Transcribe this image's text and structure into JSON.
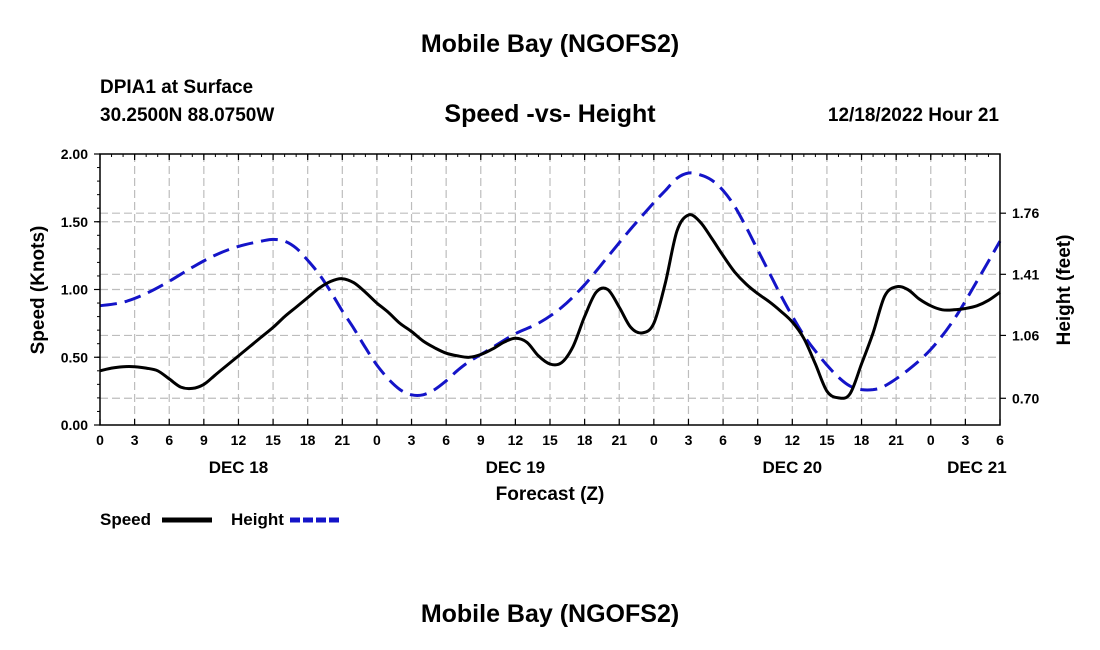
{
  "header": {
    "title": "Mobile Bay (NGOFS2)",
    "station": "DPIA1 at Surface",
    "coords": "30.2500N  88.0750W",
    "chart_title": "Speed -vs- Height",
    "datetime": "12/18/2022 Hour 21"
  },
  "footer": {
    "title": "Mobile Bay (NGOFS2)"
  },
  "legend": {
    "speed_label": "Speed",
    "height_label": "Height"
  },
  "colors": {
    "speed": "#000000",
    "height": "#1414c8",
    "grid": "#bdbdbd"
  },
  "chart_data": {
    "type": "line",
    "title": "Speed -vs- Height",
    "xlabel": "Forecast (Z)",
    "ylabel": "Speed (Knots)",
    "y2label": "Height (feet)",
    "x_range": [
      0,
      78
    ],
    "ylim": [
      0,
      2.0
    ],
    "y2lim": [
      0.547,
      2.099
    ],
    "x_ticks": [
      0,
      3,
      6,
      9,
      12,
      15,
      18,
      21,
      24,
      27,
      30,
      33,
      36,
      39,
      42,
      45,
      48,
      51,
      54,
      57,
      60,
      63,
      66,
      69,
      72,
      75,
      78
    ],
    "x_tick_labels": [
      "0",
      "3",
      "6",
      "9",
      "12",
      "15",
      "18",
      "21",
      "0",
      "3",
      "6",
      "9",
      "12",
      "15",
      "18",
      "21",
      "0",
      "3",
      "6",
      "9",
      "12",
      "15",
      "18",
      "21",
      "0",
      "3",
      "6"
    ],
    "day_labels": [
      {
        "x": 12,
        "label": "DEC 18"
      },
      {
        "x": 36,
        "label": "DEC 19"
      },
      {
        "x": 60,
        "label": "DEC 20"
      },
      {
        "x": 76,
        "label": "DEC 21"
      }
    ],
    "y_ticks": [
      0,
      0.5,
      1.0,
      1.5,
      2.0
    ],
    "y_tick_labels": [
      "0.00",
      "0.50",
      "1.00",
      "1.50",
      "2.00"
    ],
    "y2_ticks": [
      0.7,
      1.06,
      1.41,
      1.76
    ],
    "y2_tick_labels": [
      "0.70",
      "1.06",
      "1.41",
      "1.76"
    ],
    "grid": true,
    "series": [
      {
        "name": "Speed",
        "axis": "left",
        "style": "solid",
        "x": [
          0,
          1,
          2,
          3,
          4,
          5,
          6,
          7,
          8,
          9,
          10,
          11,
          12,
          13,
          14,
          15,
          16,
          17,
          18,
          19,
          20,
          21,
          22,
          23,
          24,
          25,
          26,
          27,
          28,
          29,
          30,
          31,
          32,
          33,
          34,
          35,
          36,
          37,
          38,
          39,
          40,
          41,
          42,
          43,
          44,
          45,
          46,
          47,
          48,
          49,
          50,
          51,
          52,
          53,
          54,
          55,
          56,
          57,
          58,
          59,
          60,
          61,
          62,
          63,
          64,
          65,
          66,
          67,
          68,
          69,
          70,
          71,
          72,
          73,
          74,
          75,
          76,
          77,
          78
        ],
        "values": [
          0.4,
          0.42,
          0.43,
          0.43,
          0.42,
          0.4,
          0.34,
          0.28,
          0.27,
          0.3,
          0.37,
          0.44,
          0.51,
          0.58,
          0.65,
          0.72,
          0.8,
          0.87,
          0.94,
          1.01,
          1.06,
          1.08,
          1.05,
          0.98,
          0.9,
          0.83,
          0.75,
          0.69,
          0.62,
          0.57,
          0.53,
          0.51,
          0.5,
          0.52,
          0.56,
          0.61,
          0.64,
          0.61,
          0.51,
          0.45,
          0.46,
          0.58,
          0.8,
          0.98,
          1.0,
          0.87,
          0.72,
          0.68,
          0.75,
          1.05,
          1.43,
          1.55,
          1.5,
          1.38,
          1.25,
          1.13,
          1.04,
          0.97,
          0.91,
          0.84,
          0.76,
          0.64,
          0.45,
          0.25,
          0.2,
          0.23,
          0.45,
          0.68,
          0.95,
          1.02,
          1.0,
          0.93,
          0.88,
          0.85,
          0.85,
          0.86,
          0.88,
          0.92,
          0.98
        ]
      },
      {
        "name": "Height",
        "axis": "right",
        "style": "dashed",
        "x": [
          0,
          2,
          4,
          6,
          8,
          10,
          12,
          14,
          15,
          16,
          17,
          18,
          19,
          20,
          21,
          22,
          23,
          24,
          25,
          26,
          27,
          28,
          29,
          30,
          31,
          32,
          34,
          36,
          38,
          40,
          42,
          44,
          46,
          48,
          49,
          50,
          51,
          52,
          53,
          54,
          55,
          56,
          57,
          58,
          59,
          60,
          61,
          62,
          63,
          64,
          65,
          66,
          67,
          68,
          70,
          72,
          74,
          76,
          78
        ],
        "values": [
          1.23,
          1.25,
          1.3,
          1.37,
          1.45,
          1.52,
          1.57,
          1.6,
          1.61,
          1.6,
          1.56,
          1.49,
          1.41,
          1.31,
          1.2,
          1.1,
          0.99,
          0.89,
          0.81,
          0.75,
          0.72,
          0.72,
          0.75,
          0.8,
          0.86,
          0.91,
          0.99,
          1.07,
          1.13,
          1.22,
          1.35,
          1.51,
          1.67,
          1.82,
          1.89,
          1.96,
          1.99,
          1.98,
          1.95,
          1.89,
          1.8,
          1.68,
          1.55,
          1.42,
          1.29,
          1.17,
          1.06,
          0.97,
          0.89,
          0.82,
          0.77,
          0.75,
          0.75,
          0.77,
          0.86,
          0.98,
          1.15,
          1.37,
          1.6
        ]
      }
    ]
  }
}
